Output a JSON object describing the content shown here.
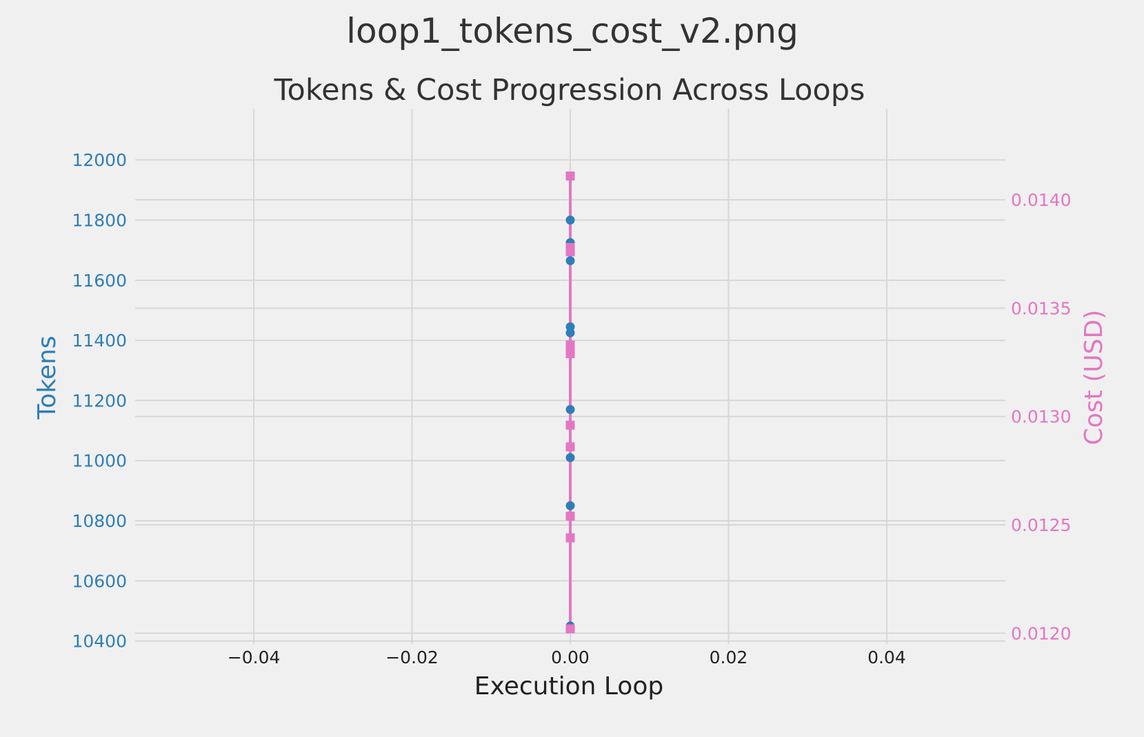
{
  "chart_data": {
    "type": "line",
    "suptitle": "loop1_tokens_cost_v2.png",
    "title": "Tokens & Cost Progression Across Loops",
    "xlabel": "Execution Loop",
    "ylabel_left": "Tokens",
    "ylabel_right": "Cost (USD)",
    "x_ticks": [
      "−0.04",
      "−0.02",
      "0.00",
      "0.02",
      "0.04"
    ],
    "x_tick_values": [
      -0.04,
      -0.02,
      0.0,
      0.02,
      0.04
    ],
    "xlim": [
      -0.055,
      0.055
    ],
    "y_left_ticks": [
      "10400",
      "10600",
      "10800",
      "11000",
      "11200",
      "11400",
      "11600",
      "11800",
      "12000"
    ],
    "y_left_tick_values": [
      10400,
      10600,
      10800,
      11000,
      11200,
      11400,
      11600,
      11800,
      12000
    ],
    "ylim_left": [
      10390,
      12170
    ],
    "y_right_ticks": [
      "0.0120",
      "0.0125",
      "0.0130",
      "0.0135",
      "0.0140"
    ],
    "y_right_tick_values": [
      0.012,
      0.0125,
      0.013,
      0.0135,
      0.014
    ],
    "ylim_right": [
      0.01195,
      0.01442
    ],
    "grid": true,
    "series": [
      {
        "axis": "left",
        "color": "#2e7eb8",
        "marker": "circle",
        "x": [
          0,
          0,
          0,
          0,
          0,
          0,
          0,
          0,
          0,
          0,
          0
        ],
        "values": [
          10450,
          10850,
          11010,
          11170,
          11370,
          11425,
          11445,
          11665,
          11715,
          11725,
          11800
        ]
      },
      {
        "axis": "right",
        "color": "#e377c2",
        "marker": "square",
        "x": [
          0,
          0,
          0,
          0,
          0,
          0,
          0,
          0,
          0,
          0,
          0
        ],
        "values": [
          0.01202,
          0.01244,
          0.01254,
          0.01286,
          0.01296,
          0.01329,
          0.01331,
          0.01333,
          0.01376,
          0.01378,
          0.01411
        ]
      }
    ],
    "colors": {
      "background": "#f0f0f0",
      "grid": "#d7d7d7",
      "left_axis": "#2e7eb8",
      "right_axis": "#e377c2",
      "text": "#333333"
    }
  }
}
